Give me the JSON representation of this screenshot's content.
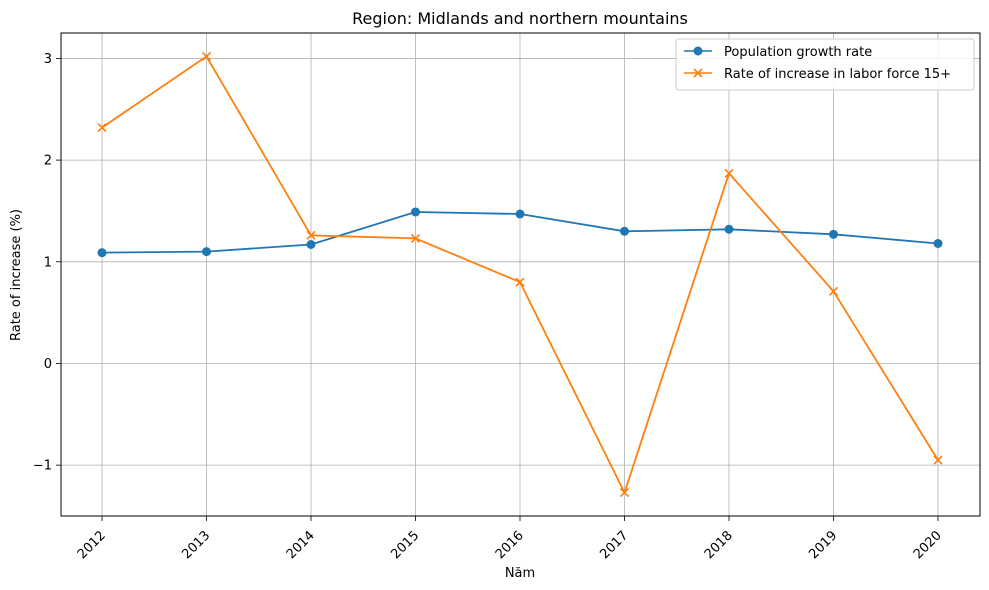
{
  "chart_data": {
    "type": "line",
    "title": "Region: Midlands and northern mountains",
    "xlabel": "Năm",
    "ylabel": "Rate of increase (%)",
    "categories": [
      "2012",
      "2013",
      "2014",
      "2015",
      "2016",
      "2017",
      "2018",
      "2019",
      "2020"
    ],
    "ylim": [
      -1.5,
      3.25
    ],
    "yticks": [
      -1,
      0,
      1,
      2,
      3
    ],
    "ytick_labels": [
      "−1",
      "0",
      "1",
      "2",
      "3"
    ],
    "grid": true,
    "legend_position": "top-right",
    "series": [
      {
        "name": "Population growth rate",
        "color": "#1f77b4",
        "marker": "circle",
        "values": [
          1.09,
          1.1,
          1.17,
          1.49,
          1.47,
          1.3,
          1.32,
          1.27,
          1.18
        ]
      },
      {
        "name": "Rate of increase in labor force 15+",
        "color": "#ff7f0e",
        "marker": "x",
        "values": [
          2.32,
          3.02,
          1.26,
          1.23,
          0.8,
          -1.27,
          1.87,
          0.71,
          -0.95
        ]
      }
    ]
  }
}
